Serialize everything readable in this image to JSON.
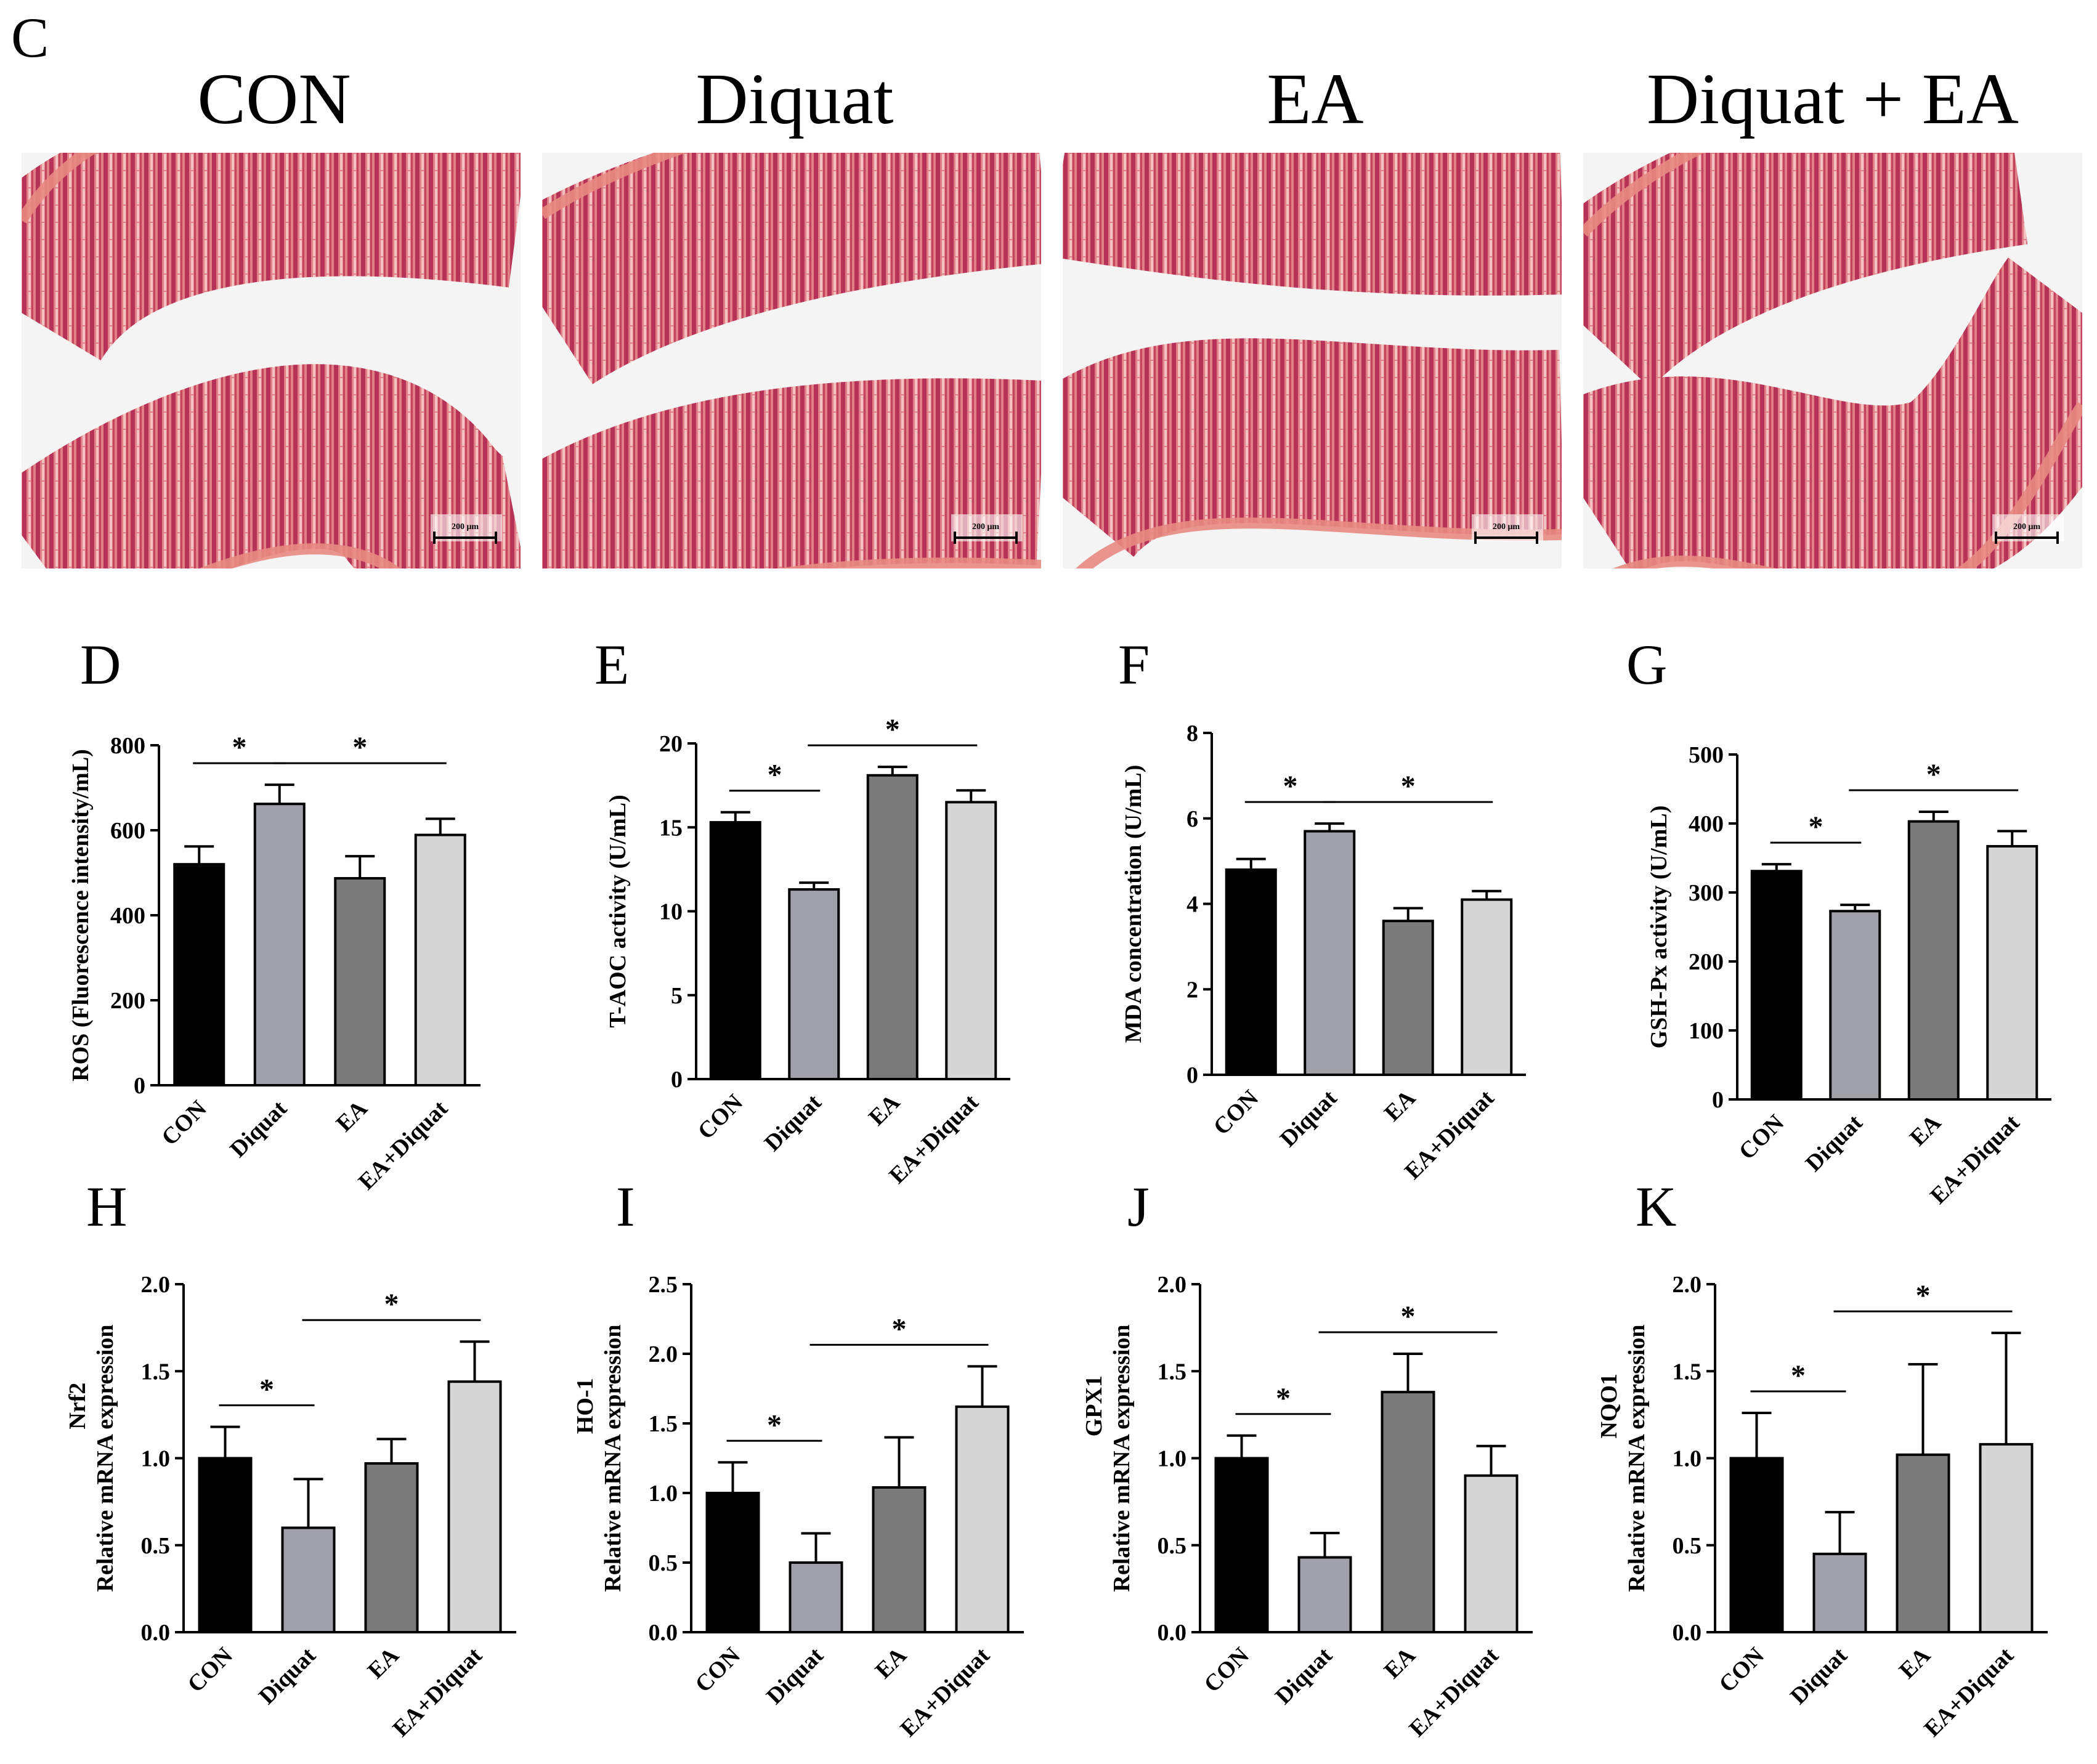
{
  "figure": {
    "panel_C": {
      "letter": "C",
      "groups": [
        "CON",
        "Diquat",
        "EA",
        "Diquat + EA"
      ],
      "scale_bar": "200 μm"
    }
  },
  "colors": {
    "CON": "#000000",
    "Diquat": "#a0a0a8",
    "EA": "#7a7a7a",
    "EA+Diquat": "#d6d6d6",
    "tissue_dark": "#b8304e",
    "tissue_light": "#e88a82",
    "background": "#f4f4f4"
  },
  "chart_data": [
    {
      "panel": "D",
      "type": "bar",
      "categories": [
        "CON",
        "Diquat",
        "EA",
        "EA+Diquat"
      ],
      "values": [
        520,
        662,
        487,
        589
      ],
      "errors": [
        42,
        45,
        52,
        38
      ],
      "ylabel": "ROS (Fluorescence intensity/mL)",
      "ylim": [
        0,
        800
      ],
      "yticks": [
        "0",
        "200",
        "400",
        "600",
        "800"
      ],
      "significance": [
        {
          "from": 0,
          "to": 1,
          "label": "*"
        },
        {
          "from": 1,
          "to": 3,
          "label": "*"
        }
      ]
    },
    {
      "panel": "E",
      "type": "bar",
      "categories": [
        "CON",
        "Diquat",
        "EA",
        "EA+Diquat"
      ],
      "values": [
        15.3,
        11.3,
        18.1,
        16.5
      ],
      "errors": [
        0.6,
        0.4,
        0.5,
        0.7
      ],
      "ylabel": "T-AOC activity (U/mL)",
      "ylim": [
        0,
        20
      ],
      "yticks": [
        "0",
        "5",
        "10",
        "15",
        "20"
      ],
      "significance": [
        {
          "from": 0,
          "to": 1,
          "label": "*"
        },
        {
          "from": 1,
          "to": 3,
          "label": "*"
        }
      ]
    },
    {
      "panel": "F",
      "type": "bar",
      "categories": [
        "CON",
        "Diquat",
        "EA",
        "EA+Diquat"
      ],
      "values": [
        4.8,
        5.7,
        3.6,
        4.1
      ],
      "errors": [
        0.25,
        0.18,
        0.3,
        0.2
      ],
      "ylabel": "MDA concentration  (U/mL)",
      "ylim": [
        0,
        8
      ],
      "yticks": [
        "0",
        "2",
        "4",
        "6",
        "8"
      ],
      "significance": [
        {
          "from": 0,
          "to": 1,
          "label": "*"
        },
        {
          "from": 1,
          "to": 3,
          "label": "*"
        }
      ]
    },
    {
      "panel": "G",
      "type": "bar",
      "categories": [
        "CON",
        "Diquat",
        "EA",
        "EA+Diquat"
      ],
      "values": [
        331,
        273,
        403,
        367
      ],
      "errors": [
        10,
        9,
        14,
        22
      ],
      "ylabel": "GSH-Px activity (U/mL)",
      "ylim": [
        0,
        500
      ],
      "yticks": [
        "0",
        "100",
        "200",
        "300",
        "400",
        "500"
      ],
      "significance": [
        {
          "from": 0,
          "to": 1,
          "label": "*"
        },
        {
          "from": 1,
          "to": 3,
          "label": "*"
        }
      ]
    },
    {
      "panel": "H",
      "type": "bar",
      "categories": [
        "CON",
        "Diquat",
        "EA",
        "EA+Diquat"
      ],
      "values": [
        1.0,
        0.6,
        0.97,
        1.44
      ],
      "errors": [
        0.18,
        0.28,
        0.14,
        0.23
      ],
      "ylabel": "Relative mRNA expression",
      "gene": "Nrf2",
      "ylim": [
        0,
        2.0
      ],
      "yticks": [
        "0.0",
        "0.5",
        "1.0",
        "1.5",
        "2.0"
      ],
      "significance": [
        {
          "from": 0,
          "to": 1,
          "label": "*"
        },
        {
          "from": 1,
          "to": 3,
          "label": "*"
        }
      ]
    },
    {
      "panel": "I",
      "type": "bar",
      "categories": [
        "CON",
        "Diquat",
        "EA",
        "EA+Diquat"
      ],
      "values": [
        1.0,
        0.5,
        1.04,
        1.62
      ],
      "errors": [
        0.22,
        0.21,
        0.36,
        0.29
      ],
      "ylabel": "Relative mRNA expression",
      "gene": "HO-1",
      "ylim": [
        0,
        2.5
      ],
      "yticks": [
        "0.0",
        "0.5",
        "1.0",
        "1.5",
        "2.0",
        "2.5"
      ],
      "significance": [
        {
          "from": 0,
          "to": 1,
          "label": "*"
        },
        {
          "from": 1,
          "to": 3,
          "label": "*"
        }
      ]
    },
    {
      "panel": "J",
      "type": "bar",
      "categories": [
        "CON",
        "Diquat",
        "EA",
        "EA+Diquat"
      ],
      "values": [
        1.0,
        0.43,
        1.38,
        0.9
      ],
      "errors": [
        0.13,
        0.14,
        0.22,
        0.17
      ],
      "ylabel": "Relative mRNA expression",
      "gene": "GPX1",
      "ylim": [
        0,
        2.0
      ],
      "yticks": [
        "0.0",
        "0.5",
        "1.0",
        "1.5",
        "2.0"
      ],
      "significance": [
        {
          "from": 0,
          "to": 1,
          "label": "*"
        },
        {
          "from": 1,
          "to": 3,
          "label": "*"
        }
      ]
    },
    {
      "panel": "K",
      "type": "bar",
      "categories": [
        "CON",
        "Diquat",
        "EA",
        "EA+Diquat"
      ],
      "values": [
        1.0,
        0.45,
        1.02,
        1.08
      ],
      "errors": [
        0.26,
        0.24,
        0.52,
        0.64
      ],
      "ylabel": "Relative mRNA expression",
      "gene": "NQO1",
      "ylim": [
        0,
        2.0
      ],
      "yticks": [
        "0.0",
        "0.5",
        "1.0",
        "1.5",
        "2.0"
      ],
      "significance": [
        {
          "from": 0,
          "to": 1,
          "label": "*"
        },
        {
          "from": 1,
          "to": 3,
          "label": "*"
        }
      ]
    }
  ]
}
